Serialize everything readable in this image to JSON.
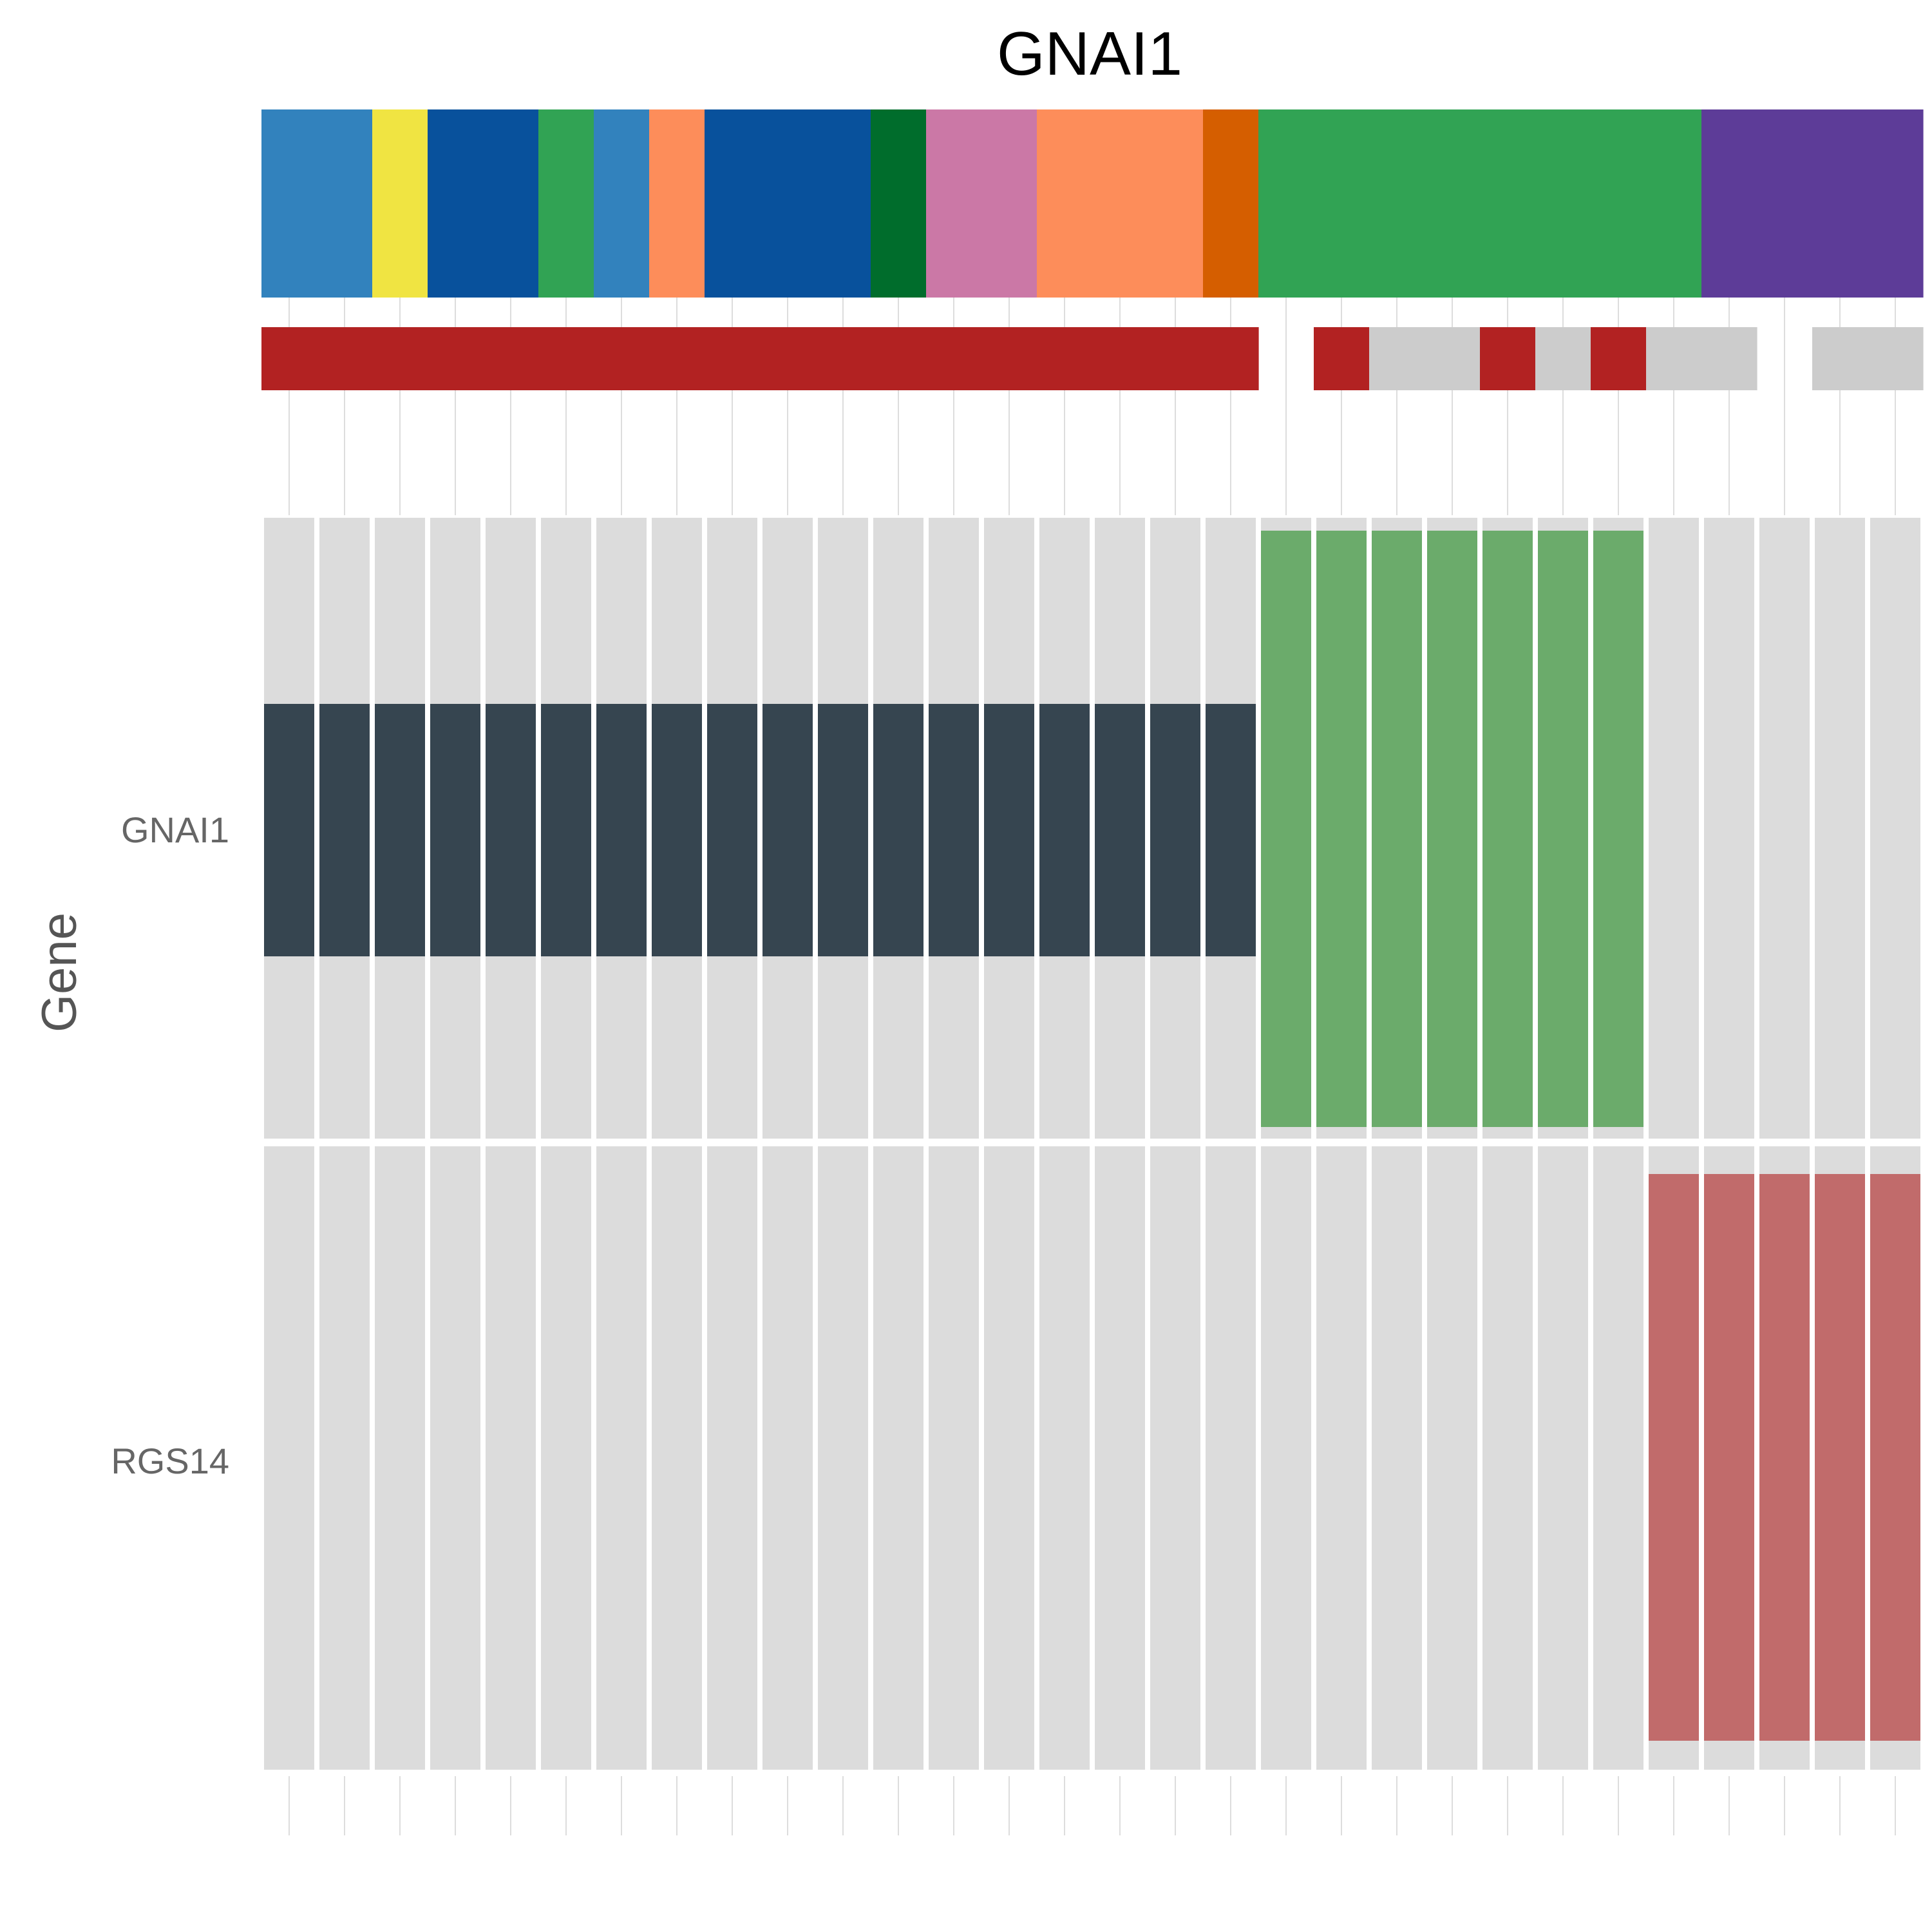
{
  "chart_data": {
    "type": "heatmap",
    "title": "GNAI1",
    "xlabel": "",
    "ylabel": "Gene",
    "genes": [
      "GNAI1",
      "RGS14"
    ],
    "n_samples": 30,
    "grid": "vertical lines at each sample column",
    "annotation_top": [
      "#3282bd",
      "#3282bd",
      "#f0e442",
      "#08519c",
      "#08519c",
      "#31a354",
      "#3282bd",
      "#fd8d5a",
      "#08519c",
      "#08519c",
      "#08519c",
      "#006d2c",
      "#cb78a6",
      "#cb78a6",
      "#fd8d5a",
      "#fd8d5a",
      "#fd8d5a",
      "#d55e00",
      "#31a354",
      "#31a354",
      "#31a354",
      "#31a354",
      "#31a354",
      "#31a354",
      "#31a354",
      "#31a354",
      "#5d3c98",
      "#5d3c98",
      "#5d3c98",
      "#5d3c98"
    ],
    "annotation_bottom": [
      "#b22222",
      "#b22222",
      "#b22222",
      "#b22222",
      "#b22222",
      "#b22222",
      "#b22222",
      "#b22222",
      "#b22222",
      "#b22222",
      "#b22222",
      "#b22222",
      "#b22222",
      "#b22222",
      "#b22222",
      "#b22222",
      "#b22222",
      "#b22222",
      null,
      "#b22222",
      "#cccccc",
      "#cccccc",
      "#b22222",
      "#cccccc",
      "#b22222",
      "#cccccc",
      "#cccccc",
      null,
      "#cccccc",
      "#cccccc"
    ],
    "cells": {
      "GNAI1": [
        "mid",
        "mid",
        "mid",
        "mid",
        "mid",
        "mid",
        "mid",
        "mid",
        "mid",
        "mid",
        "mid",
        "mid",
        "mid",
        "mid",
        "mid",
        "mid",
        "mid",
        "mid",
        "high",
        "high",
        "high",
        "high",
        "high",
        "high",
        "high",
        null,
        null,
        null,
        null,
        null
      ],
      "RGS14": [
        null,
        null,
        null,
        null,
        null,
        null,
        null,
        null,
        null,
        null,
        null,
        null,
        null,
        null,
        null,
        null,
        null,
        null,
        null,
        null,
        null,
        null,
        null,
        null,
        null,
        "low",
        "low",
        "low",
        "low",
        "low"
      ]
    },
    "cell_colors": {
      "background": "#dcdcdc",
      "mid": "#364550",
      "high": "#6bab6b",
      "low": "#c16b6b"
    }
  }
}
